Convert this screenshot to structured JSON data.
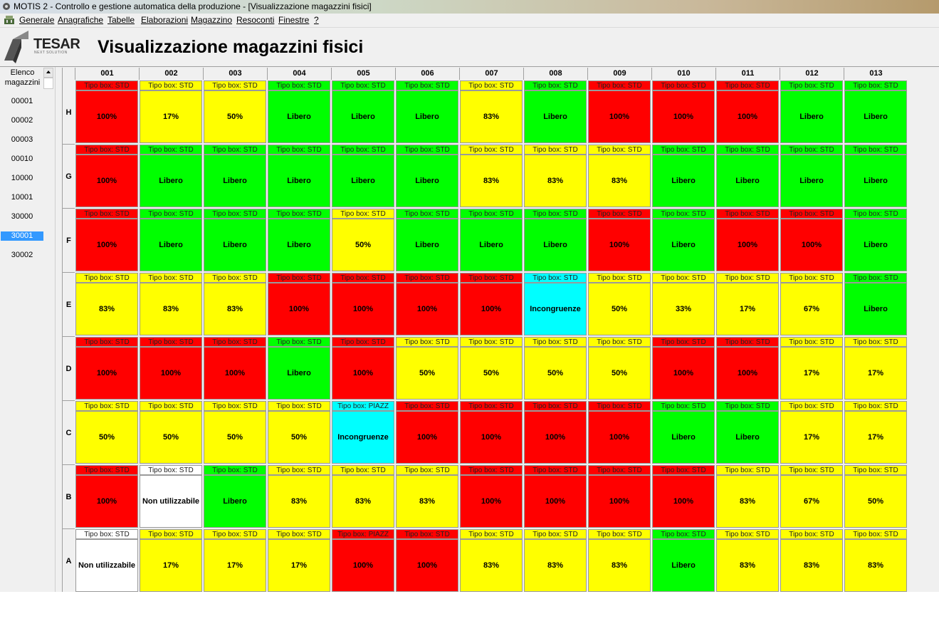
{
  "window": {
    "title": "MOTIS 2 - Controllo e gestione automatica della produzione - [Visualizzazione magazzini fisici]"
  },
  "menu": [
    "Generale",
    "Anagrafiche",
    "Tabelle",
    "Elaborazioni",
    "Magazzino",
    "Resoconti",
    "Finestre",
    "?"
  ],
  "logo": {
    "text": "TESAR",
    "sub": "NEXT SOLUTION"
  },
  "page_title": "Visualizzazione magazzini fisici",
  "sidebar": {
    "header_line1": "Elenco",
    "header_line2": "magazzini",
    "items": [
      "00001",
      "00002",
      "00003",
      "00010",
      "10000",
      "10001",
      "30000",
      "30001",
      "30002"
    ],
    "selected": "30001"
  },
  "colors": {
    "red": "#ff0000",
    "yellow": "#ffff00",
    "green": "#00ff00",
    "cyan": "#00ffff",
    "white": "#ffffff",
    "selection": "#3399ff"
  },
  "grid": {
    "columns": [
      "001",
      "002",
      "003",
      "004",
      "005",
      "006",
      "007",
      "008",
      "009",
      "010",
      "011",
      "012",
      "013"
    ],
    "rows": [
      {
        "label": "H",
        "cells": [
          {
            "top": "Tipo box: STD",
            "value": "100%",
            "color": "red"
          },
          {
            "top": "Tipo box: STD",
            "value": "17%",
            "color": "yellow"
          },
          {
            "top": "Tipo box: STD",
            "value": "50%",
            "color": "yellow"
          },
          {
            "top": "Tipo box: STD",
            "value": "Libero",
            "color": "green"
          },
          {
            "top": "Tipo box: STD",
            "value": "Libero",
            "color": "green"
          },
          {
            "top": "Tipo box: STD",
            "value": "Libero",
            "color": "green"
          },
          {
            "top": "Tipo box: STD",
            "value": "83%",
            "color": "yellow"
          },
          {
            "top": "Tipo box: STD",
            "value": "Libero",
            "color": "green"
          },
          {
            "top": "Tipo box: STD",
            "value": "100%",
            "color": "red"
          },
          {
            "top": "Tipo box: STD",
            "value": "100%",
            "color": "red"
          },
          {
            "top": "Tipo box: STD",
            "value": "100%",
            "color": "red"
          },
          {
            "top": "Tipo box: STD",
            "value": "Libero",
            "color": "green"
          },
          {
            "top": "Tipo box: STD",
            "value": "Libero",
            "color": "green"
          }
        ]
      },
      {
        "label": "G",
        "cells": [
          {
            "top": "Tipo box: STD",
            "value": "100%",
            "color": "red"
          },
          {
            "top": "Tipo box: STD",
            "value": "Libero",
            "color": "green"
          },
          {
            "top": "Tipo box: STD",
            "value": "Libero",
            "color": "green"
          },
          {
            "top": "Tipo box: STD",
            "value": "Libero",
            "color": "green"
          },
          {
            "top": "Tipo box: STD",
            "value": "Libero",
            "color": "green"
          },
          {
            "top": "Tipo box: STD",
            "value": "Libero",
            "color": "green"
          },
          {
            "top": "Tipo box: STD",
            "value": "83%",
            "color": "yellow"
          },
          {
            "top": "Tipo box: STD",
            "value": "83%",
            "color": "yellow"
          },
          {
            "top": "Tipo box: STD",
            "value": "83%",
            "color": "yellow"
          },
          {
            "top": "Tipo box: STD",
            "value": "Libero",
            "color": "green"
          },
          {
            "top": "Tipo box: STD",
            "value": "Libero",
            "color": "green"
          },
          {
            "top": "Tipo box: STD",
            "value": "Libero",
            "color": "green"
          },
          {
            "top": "Tipo box: STD",
            "value": "Libero",
            "color": "green"
          }
        ]
      },
      {
        "label": "F",
        "cells": [
          {
            "top": "Tipo box: STD",
            "value": "100%",
            "color": "red"
          },
          {
            "top": "Tipo box: STD",
            "value": "Libero",
            "color": "green"
          },
          {
            "top": "Tipo box: STD",
            "value": "Libero",
            "color": "green"
          },
          {
            "top": "Tipo box: STD",
            "value": "Libero",
            "color": "green"
          },
          {
            "top": "Tipo box: STD",
            "value": "50%",
            "color": "yellow"
          },
          {
            "top": "Tipo box: STD",
            "value": "Libero",
            "color": "green"
          },
          {
            "top": "Tipo box: STD",
            "value": "Libero",
            "color": "green"
          },
          {
            "top": "Tipo box: STD",
            "value": "Libero",
            "color": "green"
          },
          {
            "top": "Tipo box: STD",
            "value": "100%",
            "color": "red"
          },
          {
            "top": "Tipo box: STD",
            "value": "Libero",
            "color": "green"
          },
          {
            "top": "Tipo box: STD",
            "value": "100%",
            "color": "red"
          },
          {
            "top": "Tipo box: STD",
            "value": "100%",
            "color": "red"
          },
          {
            "top": "Tipo box: STD",
            "value": "Libero",
            "color": "green"
          }
        ]
      },
      {
        "label": "E",
        "cells": [
          {
            "top": "Tipo box: STD",
            "value": "83%",
            "color": "yellow"
          },
          {
            "top": "Tipo box: STD",
            "value": "83%",
            "color": "yellow"
          },
          {
            "top": "Tipo box: STD",
            "value": "83%",
            "color": "yellow"
          },
          {
            "top": "Tipo box: STD",
            "value": "100%",
            "color": "red"
          },
          {
            "top": "Tipo box: STD",
            "value": "100%",
            "color": "red"
          },
          {
            "top": "Tipo box: STD",
            "value": "100%",
            "color": "red"
          },
          {
            "top": "Tipo box: STD",
            "value": "100%",
            "color": "red"
          },
          {
            "top": "Tipo box: STD",
            "value": "Incongruenze",
            "color": "cyan"
          },
          {
            "top": "Tipo box: STD",
            "value": "50%",
            "color": "yellow"
          },
          {
            "top": "Tipo box: STD",
            "value": "33%",
            "color": "yellow"
          },
          {
            "top": "Tipo box: STD",
            "value": "17%",
            "color": "yellow"
          },
          {
            "top": "Tipo box: STD",
            "value": "67%",
            "color": "yellow"
          },
          {
            "top": "Tipo box: STD",
            "value": "Libero",
            "color": "green"
          }
        ]
      },
      {
        "label": "D",
        "cells": [
          {
            "top": "Tipo box: STD",
            "value": "100%",
            "color": "red"
          },
          {
            "top": "Tipo box: STD",
            "value": "100%",
            "color": "red"
          },
          {
            "top": "Tipo box: STD",
            "value": "100%",
            "color": "red"
          },
          {
            "top": "Tipo box: STD",
            "value": "Libero",
            "color": "green"
          },
          {
            "top": "Tipo box: STD",
            "value": "100%",
            "color": "red"
          },
          {
            "top": "Tipo box: STD",
            "value": "50%",
            "color": "yellow"
          },
          {
            "top": "Tipo box: STD",
            "value": "50%",
            "color": "yellow"
          },
          {
            "top": "Tipo box: STD",
            "value": "50%",
            "color": "yellow"
          },
          {
            "top": "Tipo box: STD",
            "value": "50%",
            "color": "yellow"
          },
          {
            "top": "Tipo box: STD",
            "value": "100%",
            "color": "red"
          },
          {
            "top": "Tipo box: STD",
            "value": "100%",
            "color": "red"
          },
          {
            "top": "Tipo box: STD",
            "value": "17%",
            "color": "yellow"
          },
          {
            "top": "Tipo box: STD",
            "value": "17%",
            "color": "yellow"
          }
        ]
      },
      {
        "label": "C",
        "cells": [
          {
            "top": "Tipo box: STD",
            "value": "50%",
            "color": "yellow"
          },
          {
            "top": "Tipo box: STD",
            "value": "50%",
            "color": "yellow"
          },
          {
            "top": "Tipo box: STD",
            "value": "50%",
            "color": "yellow"
          },
          {
            "top": "Tipo box: STD",
            "value": "50%",
            "color": "yellow"
          },
          {
            "top": "Tipo box: PIAZZ",
            "value": "Incongruenze",
            "color": "cyan"
          },
          {
            "top": "Tipo box: STD",
            "value": "100%",
            "color": "red"
          },
          {
            "top": "Tipo box: STD",
            "value": "100%",
            "color": "red"
          },
          {
            "top": "Tipo box: STD",
            "value": "100%",
            "color": "red"
          },
          {
            "top": "Tipo box: STD",
            "value": "100%",
            "color": "red"
          },
          {
            "top": "Tipo box: STD",
            "value": "Libero",
            "color": "green"
          },
          {
            "top": "Tipo box: STD",
            "value": "Libero",
            "color": "green"
          },
          {
            "top": "Tipo box: STD",
            "value": "17%",
            "color": "yellow"
          },
          {
            "top": "Tipo box: STD",
            "value": "17%",
            "color": "yellow"
          }
        ]
      },
      {
        "label": "B",
        "cells": [
          {
            "top": "Tipo box: STD",
            "value": "100%",
            "color": "red"
          },
          {
            "top": "Tipo box: STD",
            "value": "Non utilizzabile",
            "color": "white"
          },
          {
            "top": "Tipo box: STD",
            "value": "Libero",
            "color": "green"
          },
          {
            "top": "Tipo box: STD",
            "value": "83%",
            "color": "yellow"
          },
          {
            "top": "Tipo box: STD",
            "value": "83%",
            "color": "yellow"
          },
          {
            "top": "Tipo box: STD",
            "value": "83%",
            "color": "yellow"
          },
          {
            "top": "Tipo box: STD",
            "value": "100%",
            "color": "red"
          },
          {
            "top": "Tipo box: STD",
            "value": "100%",
            "color": "red"
          },
          {
            "top": "Tipo box: STD",
            "value": "100%",
            "color": "red"
          },
          {
            "top": "Tipo box: STD",
            "value": "100%",
            "color": "red"
          },
          {
            "top": "Tipo box: STD",
            "value": "83%",
            "color": "yellow"
          },
          {
            "top": "Tipo box: STD",
            "value": "67%",
            "color": "yellow"
          },
          {
            "top": "Tipo box: STD",
            "value": "50%",
            "color": "yellow"
          }
        ]
      },
      {
        "label": "A",
        "cells": [
          {
            "top": "Tipo box: STD",
            "value": "Non utilizzabile",
            "color": "white"
          },
          {
            "top": "Tipo box: STD",
            "value": "17%",
            "color": "yellow"
          },
          {
            "top": "Tipo box: STD",
            "value": "17%",
            "color": "yellow"
          },
          {
            "top": "Tipo box: STD",
            "value": "17%",
            "color": "yellow"
          },
          {
            "top": "Tipo box: PIAZZ",
            "value": "100%",
            "color": "red"
          },
          {
            "top": "Tipo box: STD",
            "value": "100%",
            "color": "red"
          },
          {
            "top": "Tipo box: STD",
            "value": "83%",
            "color": "yellow"
          },
          {
            "top": "Tipo box: STD",
            "value": "83%",
            "color": "yellow"
          },
          {
            "top": "Tipo box: STD",
            "value": "83%",
            "color": "yellow"
          },
          {
            "top": "Tipo box: STD",
            "value": "Libero",
            "color": "green"
          },
          {
            "top": "Tipo box: STD",
            "value": "83%",
            "color": "yellow"
          },
          {
            "top": "Tipo box: STD",
            "value": "83%",
            "color": "yellow"
          },
          {
            "top": "Tipo box: STD",
            "value": "83%",
            "color": "yellow"
          }
        ]
      }
    ]
  }
}
